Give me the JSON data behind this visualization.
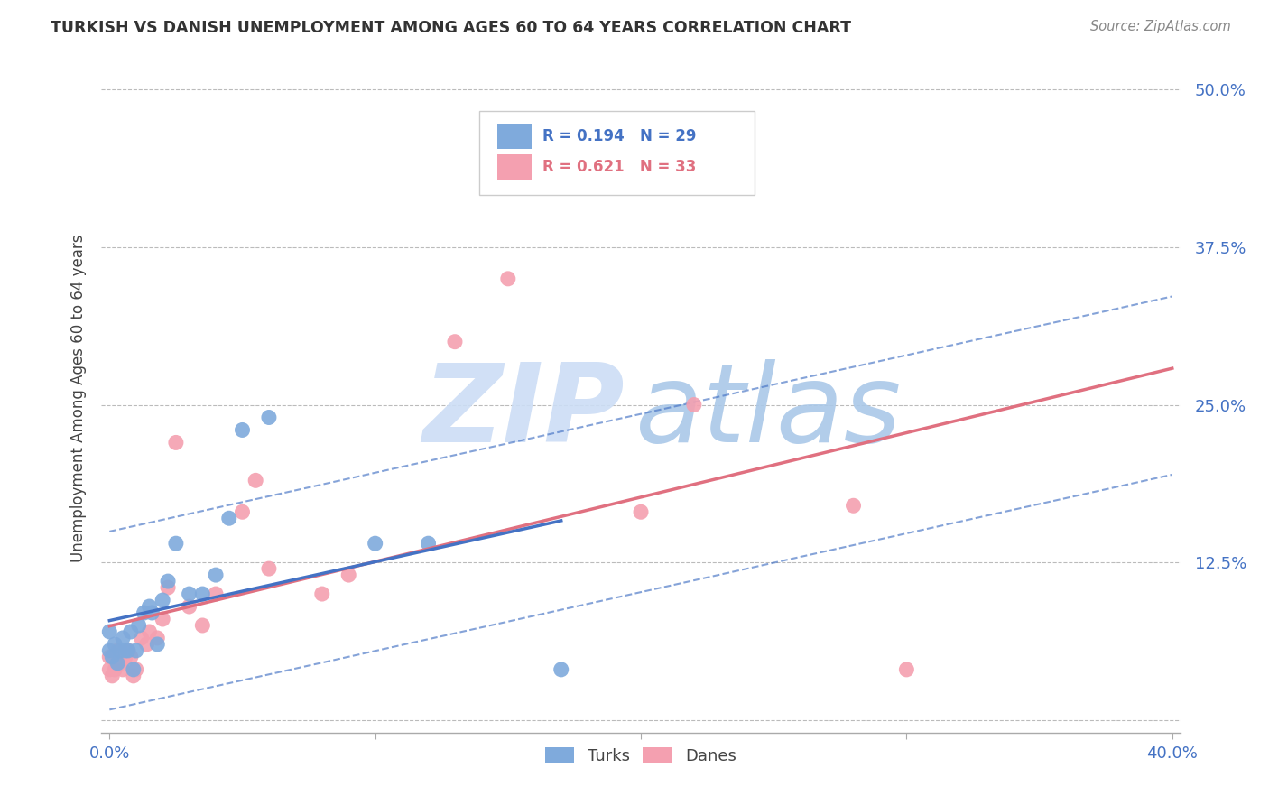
{
  "title": "TURKISH VS DANISH UNEMPLOYMENT AMONG AGES 60 TO 64 YEARS CORRELATION CHART",
  "source": "Source: ZipAtlas.com",
  "ylabel": "Unemployment Among Ages 60 to 64 years",
  "xlim": [
    -0.003,
    0.403
  ],
  "ylim": [
    -0.01,
    0.52
  ],
  "xticks": [
    0.0,
    0.1,
    0.2,
    0.3,
    0.4
  ],
  "xtick_labels": [
    "0.0%",
    "",
    "",
    "",
    "40.0%"
  ],
  "yticks": [
    0.0,
    0.125,
    0.25,
    0.375,
    0.5
  ],
  "ytick_labels": [
    "",
    "12.5%",
    "25.0%",
    "37.5%",
    "50.0%"
  ],
  "turks_color": "#7faadc",
  "danes_color": "#f4a0b0",
  "turks_line_color": "#4472c4",
  "danes_line_color": "#e07080",
  "legend_turks_R": "R = 0.194",
  "legend_turks_N": "N = 29",
  "legend_danes_R": "R = 0.621",
  "legend_danes_N": "N = 33",
  "background_color": "#ffffff",
  "grid_color": "#bbbbbb",
  "tick_color": "#4472c4",
  "turks_x": [
    0.0,
    0.0,
    0.001,
    0.002,
    0.003,
    0.004,
    0.005,
    0.006,
    0.007,
    0.008,
    0.009,
    0.01,
    0.011,
    0.013,
    0.015,
    0.016,
    0.018,
    0.02,
    0.022,
    0.025,
    0.03,
    0.035,
    0.04,
    0.045,
    0.05,
    0.06,
    0.1,
    0.12,
    0.17
  ],
  "turks_y": [
    0.055,
    0.07,
    0.05,
    0.06,
    0.045,
    0.055,
    0.065,
    0.055,
    0.055,
    0.07,
    0.04,
    0.055,
    0.075,
    0.085,
    0.09,
    0.085,
    0.06,
    0.095,
    0.11,
    0.14,
    0.1,
    0.1,
    0.115,
    0.16,
    0.23,
    0.24,
    0.14,
    0.14,
    0.04
  ],
  "danes_x": [
    0.0,
    0.0,
    0.001,
    0.002,
    0.003,
    0.004,
    0.005,
    0.006,
    0.007,
    0.008,
    0.009,
    0.01,
    0.012,
    0.014,
    0.015,
    0.018,
    0.02,
    0.022,
    0.025,
    0.03,
    0.035,
    0.04,
    0.05,
    0.055,
    0.06,
    0.08,
    0.09,
    0.13,
    0.15,
    0.2,
    0.22,
    0.28,
    0.3
  ],
  "danes_y": [
    0.04,
    0.05,
    0.035,
    0.04,
    0.055,
    0.045,
    0.04,
    0.05,
    0.055,
    0.05,
    0.035,
    0.04,
    0.065,
    0.06,
    0.07,
    0.065,
    0.08,
    0.105,
    0.22,
    0.09,
    0.075,
    0.1,
    0.165,
    0.19,
    0.12,
    0.1,
    0.115,
    0.3,
    0.35,
    0.165,
    0.25,
    0.17,
    0.04
  ],
  "watermark_zip_color": "#ccddf5",
  "watermark_atlas_color": "#aac8e8"
}
